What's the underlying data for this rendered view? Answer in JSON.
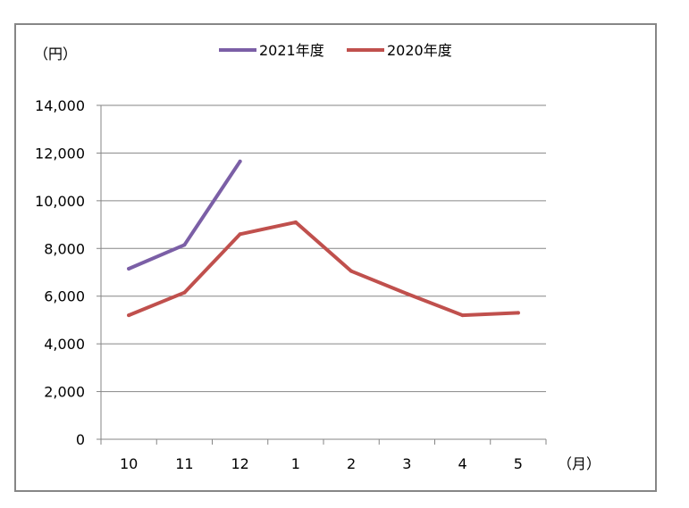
{
  "chart_data": {
    "type": "line",
    "y_unit_label": "（円）",
    "x_unit_label": "（月）",
    "categories": [
      "10",
      "11",
      "12",
      "1",
      "2",
      "3",
      "4",
      "5"
    ],
    "ylim": [
      0,
      14000
    ],
    "yticks": [
      0,
      2000,
      4000,
      6000,
      8000,
      10000,
      12000,
      14000
    ],
    "ytick_labels": [
      "0",
      "2,000",
      "4,000",
      "6,000",
      "8,000",
      "10,000",
      "12,000",
      "14,000"
    ],
    "grid": true,
    "legend_position": "top",
    "series": [
      {
        "name": "2021年度",
        "color": "#7b5fa6",
        "values": [
          7150,
          8150,
          11650,
          null,
          null,
          null,
          null,
          null
        ]
      },
      {
        "name": "2020年度",
        "color": "#c0504d",
        "values": [
          5200,
          6150,
          8600,
          9100,
          7050,
          6100,
          5200,
          5300
        ]
      }
    ],
    "colors": {
      "grid": "#868686",
      "axis": "#868686",
      "frame": "#868686"
    }
  }
}
